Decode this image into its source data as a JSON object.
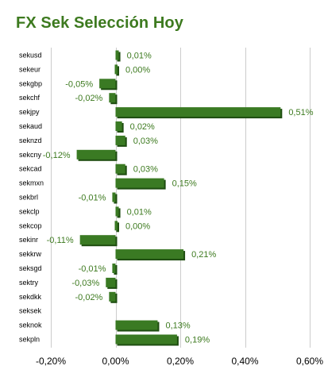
{
  "chart_data": {
    "type": "bar",
    "orientation": "horizontal",
    "title": "FX Sek Selección Hoy",
    "categories": [
      "sekusd",
      "sekeur",
      "sekgbp",
      "sekchf",
      "sekjpy",
      "sekaud",
      "seknzd",
      "sekcny",
      "sekcad",
      "sekmxn",
      "sekbrl",
      "sekclp",
      "sekcop",
      "sekinr",
      "sekkrw",
      "seksgd",
      "sektry",
      "sekdkk",
      "seksek",
      "seknok",
      "sekpln"
    ],
    "values": [
      0.01,
      0.0,
      -0.05,
      -0.02,
      0.51,
      0.02,
      0.03,
      -0.12,
      0.03,
      0.15,
      -0.01,
      0.01,
      0.0,
      -0.11,
      0.21,
      -0.01,
      -0.03,
      -0.02,
      null,
      0.13,
      0.19
    ],
    "labels": [
      "0,01%",
      "0,00%",
      "-0,05%",
      "-0,02%",
      "0,51%",
      "0,02%",
      "0,03%",
      "-0,12%",
      "0,03%",
      "0,15%",
      "-0,01%",
      "0,01%",
      "0,00%",
      "-0,11%",
      "0,21%",
      "-0,01%",
      "-0,03%",
      "-0,02%",
      "",
      "0,13%",
      "0,19%"
    ],
    "xlim": [
      -0.2,
      0.6
    ],
    "xticks": [
      -0.2,
      0.0,
      0.2,
      0.4,
      0.6
    ],
    "xtick_labels": [
      "-0,20%",
      "0,00%",
      "0,20%",
      "0,40%",
      "0,60%"
    ],
    "xlabel": "",
    "ylabel": "",
    "grid": true,
    "legend": "none",
    "colors": {
      "bar": "#3a7a23",
      "bar_shadow": "#1e4d10",
      "title": "#3d7a1f",
      "value_label": "#3d7a1f",
      "grid": "#cccccc"
    }
  }
}
